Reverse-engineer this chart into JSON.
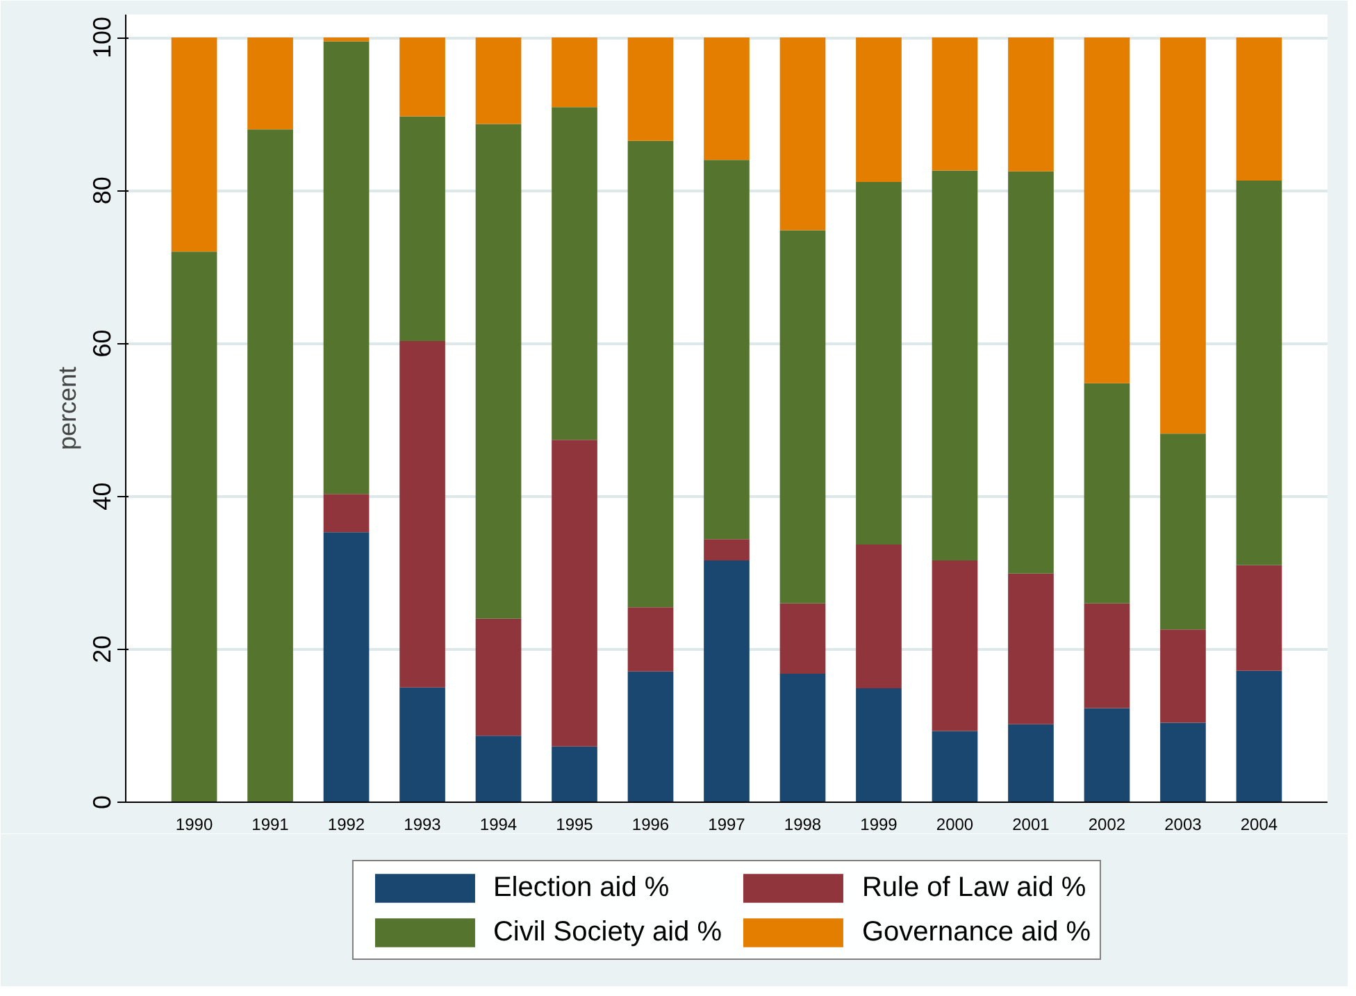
{
  "chart_data": {
    "type": "bar",
    "stacked": true,
    "ylabel": "percent",
    "categories": [
      "1990",
      "1991",
      "1992",
      "1993",
      "1994",
      "1995",
      "1996",
      "1997",
      "1998",
      "1999",
      "2000",
      "2001",
      "2002",
      "2003",
      "2004"
    ],
    "series": [
      {
        "name": "Election aid %",
        "color": "#1a476f",
        "values": [
          0,
          0,
          35.3,
          15,
          8.7,
          7.3,
          17.1,
          31.6,
          16.8,
          14.9,
          9.3,
          10.2,
          12.3,
          10.4,
          17.2
        ]
      },
      {
        "name": "Rule of Law aid %",
        "color": "#90353b",
        "values": [
          0,
          0,
          5,
          45.3,
          15.3,
          40.1,
          8.4,
          2.8,
          9.2,
          18.8,
          22.3,
          19.7,
          13.7,
          12.2,
          13.8
        ]
      },
      {
        "name": "Civil Society aid %",
        "color": "#55752f",
        "values": [
          72,
          88,
          59.2,
          29.4,
          64.7,
          43.5,
          61,
          49.6,
          48.8,
          47.4,
          51,
          52.6,
          28.8,
          25.6,
          50.3
        ]
      },
      {
        "name": "Governance aid %",
        "color": "#e37e00",
        "values": [
          28,
          12,
          0.5,
          10.3,
          11.3,
          9.1,
          13.5,
          16,
          25.2,
          18.9,
          17.4,
          17.5,
          45.2,
          51.8,
          18.7
        ]
      }
    ],
    "ylim": [
      0,
      103
    ],
    "yticks": [
      0,
      20,
      40,
      60,
      80,
      100
    ],
    "grid": "y",
    "legend": "bottom"
  }
}
